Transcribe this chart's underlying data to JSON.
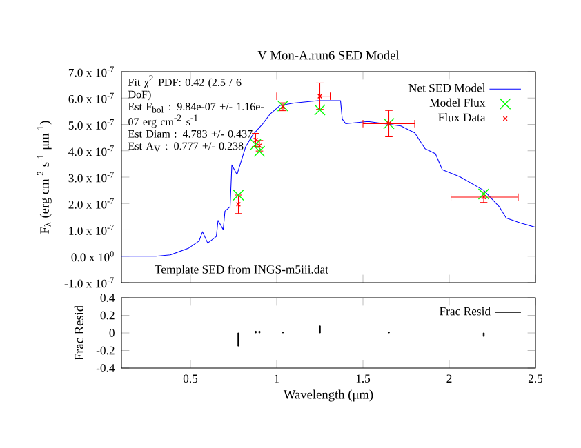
{
  "chart_data": [
    {
      "type": "line",
      "title": "V Mon-A.run6 SED Model",
      "ylabel": "F$_{λ}$ (erg cm$^{-2}$ s$^{-1}$ μm$^{-1}$)",
      "annotations": [
        "Fit χ$^{2}$ PDF: 0.42 (2.5 / 6 DoF)",
        "Est F$_{bol}$ : 9.84e-07 +/- 1.16e-07 erg cm$^{-2}$ s$^{-1}$",
        "Est Diam : 4.783 +/- 0.437",
        "Est A$_{V}$ : 0.777 +/- 0.238",
        "Template SED from INGS-m5iii.dat"
      ],
      "xlim": [
        0.1,
        2.5
      ],
      "xticks": [
        0.5,
        1,
        1.5,
        2,
        2.5
      ],
      "ylim": [
        -1e-07,
        7e-07
      ],
      "yticks": [
        {
          "value": -1e-07,
          "label": "-1.0 x 10$^{-7}$"
        },
        {
          "value": 0,
          "label": "0.0 x 10$^{0}$"
        },
        {
          "value": 1e-07,
          "label": "1.0 x 10$^{-7}$"
        },
        {
          "value": 2e-07,
          "label": "2.0 x 10$^{-7}$"
        },
        {
          "value": 3e-07,
          "label": "3.0 x 10$^{-7}$"
        },
        {
          "value": 4e-07,
          "label": "4.0 x 10$^{-7}$"
        },
        {
          "value": 5e-07,
          "label": "5.0 x 10$^{-7}$"
        },
        {
          "value": 6e-07,
          "label": "6.0 x 10$^{-7}$"
        },
        {
          "value": 7e-07,
          "label": "7.0 x 10$^{-7}$"
        }
      ],
      "tick_labels": "y",
      "legend": "top right",
      "series": [
        {
          "name": "Net SED Model",
          "type": "line",
          "marker": "none",
          "color": "#0000ff",
          "x": [
            0.1,
            0.3,
            0.383,
            0.49,
            0.55,
            0.57,
            0.6,
            0.65,
            0.66,
            0.69,
            0.7,
            0.73,
            0.74,
            0.77,
            0.82,
            0.86,
            0.92,
            0.96,
            1.02,
            1.1,
            1.24,
            1.37,
            1.38,
            1.4,
            1.53,
            1.72,
            1.8,
            1.86,
            1.92,
            1.96,
            2.06,
            2.2,
            2.29,
            2.33,
            2.41,
            2.5
          ],
          "values": [
            0,
            0,
            5e-09,
            3.1e-08,
            5.8e-08,
            9.3e-08,
            5e-08,
            7.5e-08,
            1.36e-07,
            1.01e-07,
            1.71e-07,
            1.88e-07,
            3.46e-07,
            3.1e-07,
            4.15e-07,
            4.59e-07,
            5.03e-07,
            5.38e-07,
            5.72e-07,
            5.81e-07,
            5.9e-07,
            5.9e-07,
            5.2e-07,
            5.03e-07,
            5.11e-07,
            4.94e-07,
            4.68e-07,
            4.08e-07,
            3.89e-07,
            3.28e-07,
            3.02e-07,
            2.5e-07,
            1.88e-07,
            1.45e-07,
            1.27e-07,
            1.1e-07
          ]
        },
        {
          "name": "Model Flux",
          "type": "scatter",
          "marker": "cross",
          "color": "#00ff00",
          "x": [
            0.778,
            0.878,
            0.9,
            1.036,
            1.25,
            1.65,
            2.2
          ],
          "values": [
            2.32e-07,
            4.24e-07,
            3.98e-07,
            5.7e-07,
            5.55e-07,
            5.03e-07,
            2.36e-07
          ]
        },
        {
          "name": "Flux Data",
          "type": "scatter",
          "marker": "cross",
          "color": "#ff0000",
          "x": [
            0.778,
            0.878,
            0.9,
            1.036,
            1.25,
            1.65,
            2.2
          ],
          "values": [
            1.97e-07,
            4.41e-07,
            4.19e-07,
            5.67e-07,
            6.07e-07,
            5.03e-07,
            2.24e-07
          ],
          "errors": [
            3.5e-08,
            2.5e-08,
            2e-08,
            1.5e-08,
            5e-08,
            5e-08,
            2e-08
          ],
          "xerrors": [
            null,
            null,
            null,
            null,
            [
              1.0,
              1.31
            ],
            [
              1.5,
              1.8
            ],
            [
              2.01,
              2.4
            ]
          ]
        }
      ]
    },
    {
      "type": "bar",
      "xlabel": "Wavelength (μm)",
      "ylabel": "Frac Resid",
      "xlim": [
        0.1,
        2.5
      ],
      "xticks": [
        0.5,
        1,
        1.5,
        2,
        2.5
      ],
      "ylim": [
        -0.4,
        0.4
      ],
      "yticks": [
        -0.4,
        -0.2,
        0,
        0.2,
        0.4
      ],
      "legend": "top right",
      "series": [
        {
          "name": "Frac Resid",
          "color": "#000000",
          "x": [
            0.778,
            0.878,
            0.9,
            1.036,
            1.25,
            1.65,
            2.2
          ],
          "values": [
            -0.15,
            0.02,
            0.02,
            0.01,
            0.08,
            0.01,
            -0.04
          ]
        }
      ]
    }
  ]
}
